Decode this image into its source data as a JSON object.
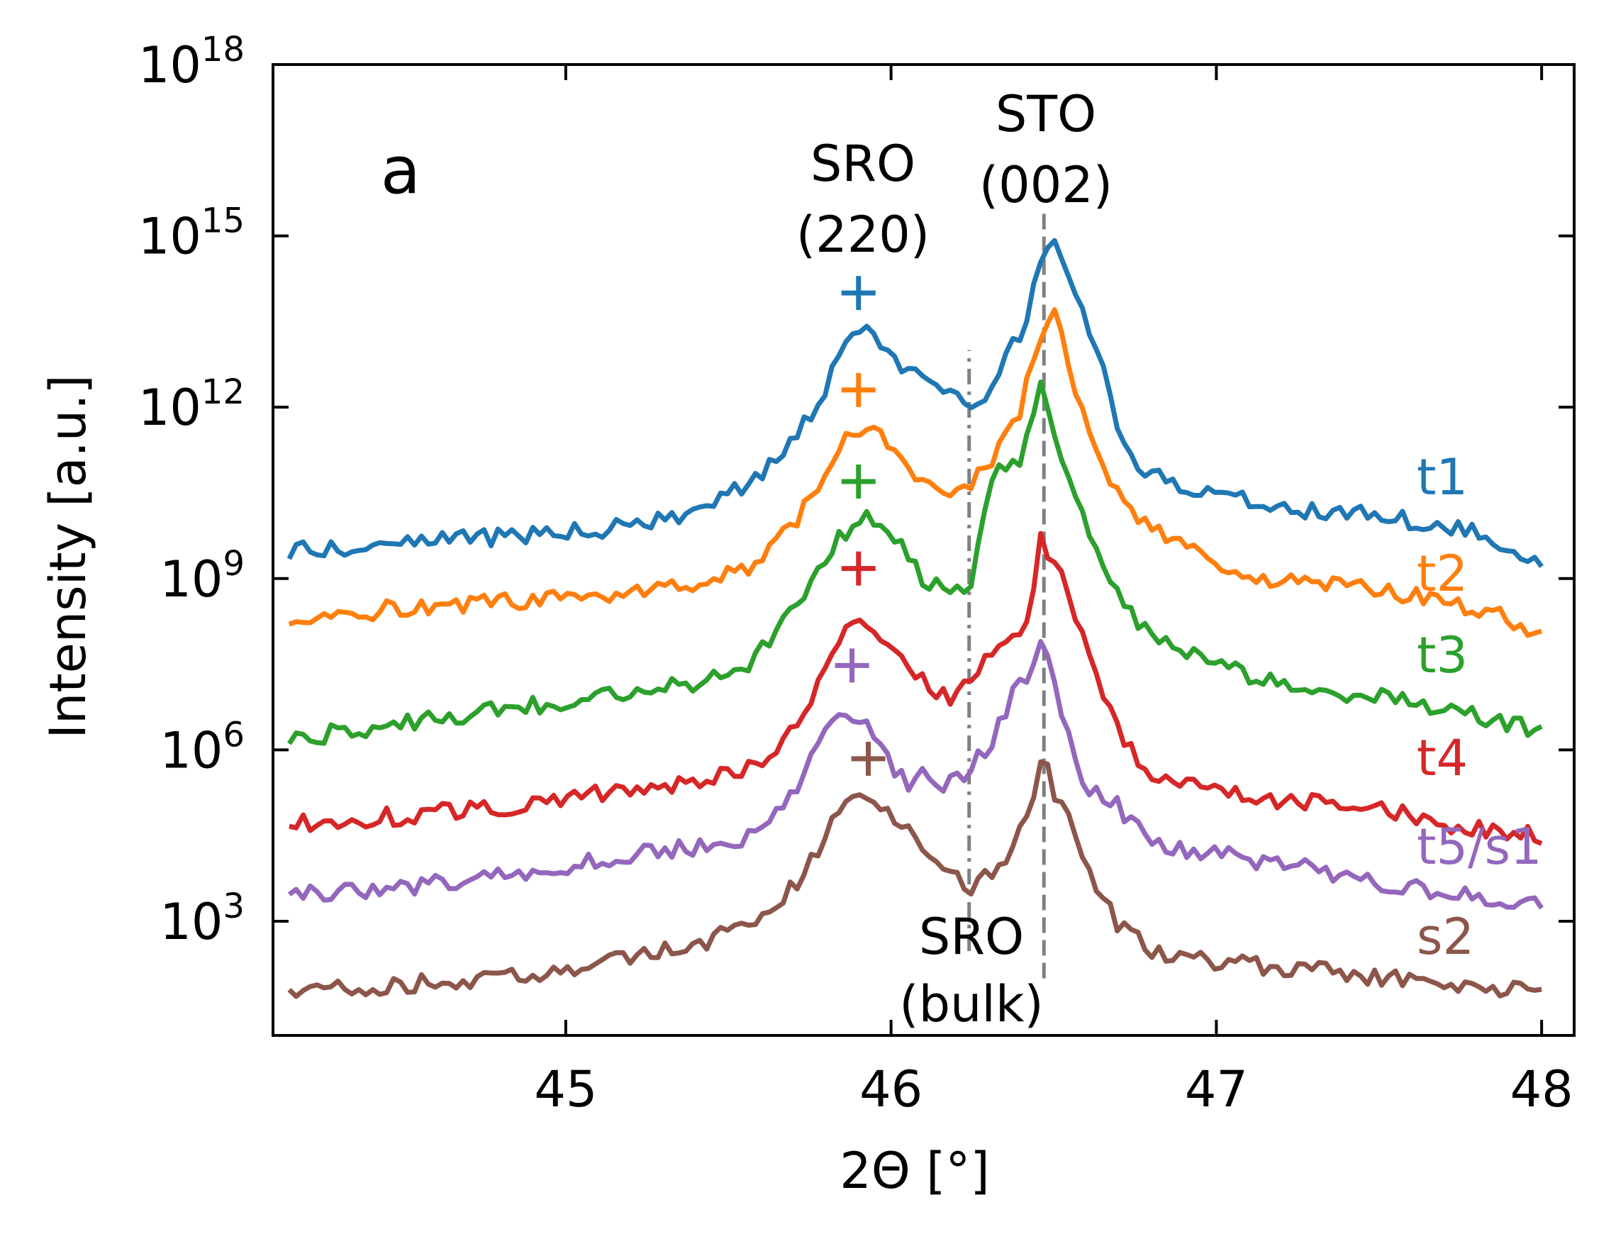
{
  "panel_label": "a",
  "chart_data": {
    "type": "line",
    "title": "",
    "xlabel": "2Θ [°]",
    "ylabel": "Intensity [a.u.]",
    "x_scale": "linear",
    "y_scale": "log",
    "xlim": [
      44.1,
      48.1
    ],
    "ylim": [
      10.0,
      1e+18
    ],
    "x_ticks": [
      45,
      46,
      47,
      48
    ],
    "x_tick_labels": [
      "45",
      "46",
      "47",
      "48"
    ],
    "y_ticks": [
      1000.0,
      1000000.0,
      1000000000.0,
      1000000000000.0,
      1000000000000000.0,
      1e+18
    ],
    "y_tick_labels": [
      {
        "base": "10",
        "exp": "3"
      },
      {
        "base": "10",
        "exp": "6"
      },
      {
        "base": "10",
        "exp": "9"
      },
      {
        "base": "10",
        "exp": "12"
      },
      {
        "base": "10",
        "exp": "15"
      },
      {
        "base": "10",
        "exp": "18"
      }
    ],
    "grid": false,
    "legend": "right side labels",
    "series": [
      {
        "name": "t1",
        "color": "#1f77b4",
        "base": 25000000000.0,
        "peak_x": 45.92,
        "peak": 20000000000000.0,
        "dip_x": 46.24,
        "dip": 1000000000000.0,
        "substrate": 1000000000000000.0,
        "seed": 11,
        "x": [
          44.15,
          44.5,
          44.8,
          45.0,
          45.2,
          45.4,
          45.55,
          45.7,
          45.8,
          45.85,
          45.92,
          46.0,
          46.1,
          46.2,
          46.24,
          46.3,
          46.4,
          46.46,
          46.5,
          46.55,
          46.6,
          46.65,
          46.7,
          46.8,
          47.0,
          47.2,
          47.4,
          47.6,
          47.8,
          48.0
        ],
        "y": [
          3000000000.0,
          4500000000.0,
          5500000000.0,
          6500000000.0,
          8000000000.0,
          15000000000.0,
          40000000000.0,
          250000000000.0,
          2000000000000.0,
          10000000000000.0,
          22000000000000.0,
          8000000000000.0,
          3000000000000.0,
          1500000000000.0,
          1000000000000.0,
          2000000000000.0,
          20000000000000.0,
          300000000000000.0,
          800000000000000.0,
          200000000000000.0,
          30000000000000.0,
          5000000000000.0,
          300000000000.0,
          60000000000.0,
          30000000000.0,
          18000000000.0,
          14000000000.0,
          10000000000.0,
          6000000000.0,
          2000000000.0
        ]
      },
      {
        "name": "t2",
        "color": "#ff7f0e",
        "base": 1000000000.0,
        "peak_x": 45.92,
        "peak": 500000000000.0,
        "dip_x": 46.24,
        "dip": 30000000000.0,
        "substrate": 30000000000000.0,
        "seed": 23,
        "x": [
          44.15,
          44.5,
          44.8,
          45.0,
          45.2,
          45.4,
          45.55,
          45.7,
          45.8,
          45.85,
          45.92,
          46.0,
          46.1,
          46.15,
          46.2,
          46.3,
          46.4,
          46.46,
          46.5,
          46.55,
          46.6,
          46.65,
          46.7,
          46.8,
          47.0,
          47.2,
          47.4,
          47.6,
          47.8,
          48.0
        ],
        "y": [
          200000000.0,
          300000000.0,
          400000000.0,
          500000000.0,
          600000000.0,
          800000000.0,
          1300000000.0,
          8000000000.0,
          80000000000.0,
          300000000000.0,
          500000000000.0,
          200000000000.0,
          50000000000.0,
          25000000000.0,
          30000000000.0,
          80000000000.0,
          1000000000000.0,
          20000000000000.0,
          40000000000000.0,
          5000000000000.0,
          400000000000.0,
          80000000000.0,
          30000000000.0,
          8000000000.0,
          1500000000.0,
          900000000.0,
          700000000.0,
          500000000.0,
          300000000.0,
          120000000.0
        ]
      },
      {
        "name": "t3",
        "color": "#2ca02c",
        "base": 20000000.0,
        "peak_x": 45.92,
        "peak": 15000000000.0,
        "dip_x": 46.22,
        "dip": 500000000.0,
        "substrate": 300000000000.0,
        "seed": 37,
        "x": [
          44.15,
          44.5,
          44.8,
          45.0,
          45.2,
          45.4,
          45.55,
          45.7,
          45.8,
          45.85,
          45.92,
          46.0,
          46.1,
          46.18,
          46.24,
          46.3,
          46.4,
          46.46,
          46.5,
          46.55,
          46.6,
          46.7,
          46.8,
          47.0,
          47.2,
          47.4,
          47.6,
          47.8,
          48.0
        ],
        "y": [
          1500000.0,
          3000000.0,
          5000000.0,
          7000000.0,
          10000000.0,
          15000000.0,
          25000000.0,
          250000000.0,
          2000000000.0,
          6000000000.0,
          14000000000.0,
          6000000000.0,
          1000000000.0,
          700000000.0,
          400000000.0,
          60000000000.0,
          120000000000.0,
          3000000000000.0,
          500000000000.0,
          50000000000.0,
          8000000000.0,
          500000000.0,
          100000000.0,
          30000000.0,
          15000000.0,
          10000000.0,
          7000000.0,
          4000000.0,
          2000000.0
        ]
      },
      {
        "name": "t4",
        "color": "#d62728",
        "base": 250000.0,
        "peak_x": 45.92,
        "peak": 200000000.0,
        "dip_x": 46.24,
        "dip": 25000000.0,
        "substrate": 10000000000.0,
        "seed": 49,
        "x": [
          44.15,
          44.5,
          44.8,
          45.0,
          45.2,
          45.4,
          45.55,
          45.7,
          45.8,
          45.85,
          45.92,
          46.0,
          46.1,
          46.2,
          46.24,
          46.3,
          46.38,
          46.43,
          46.46,
          46.52,
          46.6,
          46.7,
          46.8,
          47.0,
          47.2,
          47.4,
          47.6,
          47.8,
          48.0
        ],
        "y": [
          50000.0,
          70000.0,
          100000.0,
          140000.0,
          200000.0,
          300000.0,
          400000.0,
          2000000.0,
          30000000.0,
          100000000.0,
          200000000.0,
          80000000.0,
          15000000.0,
          8000000.0,
          15000000.0,
          50000000.0,
          120000000.0,
          200000000.0,
          5000000000.0,
          1500000000.0,
          50000000.0,
          2000000.0,
          400000.0,
          200000.0,
          130000.0,
          100000.0,
          70000.0,
          40000.0,
          30000.0
        ]
      },
      {
        "name": "t5/s1",
        "color": "#9467bd",
        "base": 20000.0,
        "peak_x": 45.9,
        "peak": 5000000.0,
        "dip_x": 46.15,
        "dip": 300000.0,
        "substrate": 100000000.0,
        "seed": 61,
        "x": [
          44.15,
          44.5,
          44.8,
          45.0,
          45.2,
          45.4,
          45.55,
          45.7,
          45.75,
          45.8,
          45.9,
          45.95,
          46.0,
          46.05,
          46.1,
          46.15,
          46.2,
          46.3,
          46.38,
          46.43,
          46.46,
          46.5,
          46.6,
          46.7,
          46.8,
          47.0,
          47.2,
          47.4,
          47.6,
          47.8,
          48.0
        ],
        "y": [
          3000.0,
          4000.0,
          6000.0,
          9000.0,
          14000.0,
          20000.0,
          30000.0,
          150000.0,
          800000.0,
          2500000.0,
          4500000.0,
          2000000.0,
          500000.0,
          250000.0,
          400000.0,
          250000.0,
          300000.0,
          1000000.0,
          10000000.0,
          20000000.0,
          100000000.0,
          15000000.0,
          200000.0,
          100000.0,
          20000.0,
          15000.0,
          10000.0,
          6000.0,
          4000.0,
          2500.0,
          1800.0
        ]
      },
      {
        "name": "s2",
        "color": "#8c564b",
        "base": 300.0,
        "peak_x": 45.93,
        "peak": 200000.0,
        "dip_x": 46.24,
        "dip": 4000.0,
        "substrate": 1000000.0,
        "seed": 73,
        "x": [
          44.15,
          44.5,
          44.8,
          45.0,
          45.2,
          45.4,
          45.55,
          45.7,
          45.8,
          45.85,
          45.93,
          46.0,
          46.1,
          46.2,
          46.24,
          46.3,
          46.38,
          46.44,
          46.47,
          46.5,
          46.53,
          46.56,
          46.6,
          46.65,
          46.7,
          46.8,
          47.0,
          47.2,
          47.4,
          47.6,
          47.8,
          48.0
        ],
        "y": [
          60,
          80,
          100,
          150,
          250,
          400,
          800,
          4000.0,
          30000.0,
          120000.0,
          200000.0,
          80000.0,
          15000.0,
          6000.0,
          4000.0,
          6000.0,
          20000.0,
          200000.0,
          1000000.0,
          200000.0,
          100000.0,
          60000.0,
          8000.0,
          3000.0,
          800.0,
          300.0,
          200,
          150,
          120,
          90,
          70,
          55
        ]
      }
    ],
    "markers": [
      {
        "series": "t1",
        "x": 45.9,
        "y": 100000000000000.0
      },
      {
        "series": "t2",
        "x": 45.9,
        "y": 2000000000000.0
      },
      {
        "series": "t3",
        "x": 45.9,
        "y": 50000000000.0
      },
      {
        "series": "t4",
        "x": 45.9,
        "y": 1500000000.0
      },
      {
        "series": "t5/s1",
        "x": 45.88,
        "y": 30000000.0
      },
      {
        "series": "s2",
        "x": 45.93,
        "y": 700000.0
      }
    ],
    "reference_lines": [
      {
        "x": 46.24,
        "style": "dashdot",
        "y_from": 300.0,
        "y_to": 10000000000000.0
      },
      {
        "x": 46.47,
        "style": "dashed",
        "y_from": 100.0,
        "y_to": 3000000000000000.0
      }
    ],
    "annotations": [
      {
        "lines": [
          "SRO",
          "(220)"
        ]
      },
      {
        "lines": [
          "STO",
          "(002)"
        ]
      },
      {
        "lines": [
          "SRO",
          "(bulk)"
        ]
      }
    ],
    "series_labels": [
      "t1",
      "t2",
      "t3",
      "t4",
      "t5/s1",
      "s2"
    ]
  }
}
